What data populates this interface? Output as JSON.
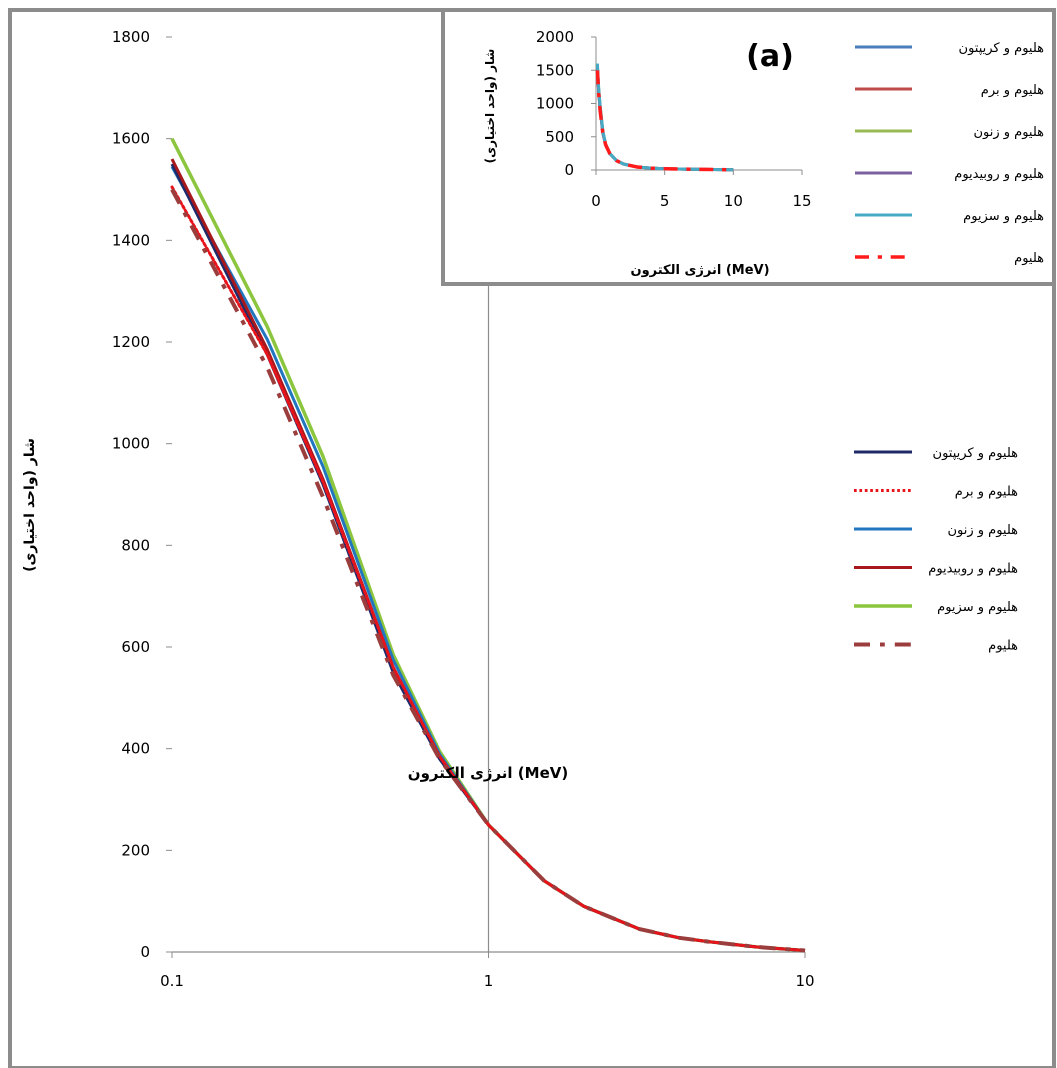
{
  "chart_data": [
    {
      "id": "main",
      "type": "line",
      "xscale": "log",
      "xlim": [
        0.1,
        10
      ],
      "ylim": [
        0,
        1800
      ],
      "yticks": [
        0,
        200,
        400,
        600,
        800,
        1000,
        1200,
        1400,
        1600,
        1800
      ],
      "xticks": [
        0.1,
        1,
        10
      ],
      "xticklabels": [
        "0.1",
        "1",
        "10"
      ],
      "xlabel": "انرژی الکترون (MeV)",
      "ylabel": "شار (واحد اختیاری)",
      "legend_position": "right",
      "x": [
        0.1,
        0.2,
        0.3,
        0.5,
        0.7,
        1,
        1.5,
        2,
        3,
        4,
        5,
        7,
        10
      ],
      "series": [
        {
          "name": "هلیوم و کریپتون",
          "color": "#1f2a6b",
          "dash": "solid",
          "width": 3,
          "values": [
            1550,
            1175,
            920,
            550,
            380,
            250,
            140,
            90,
            45,
            28,
            20,
            10,
            3
          ]
        },
        {
          "name": "هلیوم و برم",
          "color": "#e8141b",
          "dash": "dot",
          "width": 3,
          "values": [
            1505,
            1175,
            925,
            560,
            385,
            250,
            140,
            90,
            45,
            28,
            20,
            10,
            3
          ]
        },
        {
          "name": "هلیوم و زنون",
          "color": "#2176bf",
          "dash": "solid",
          "width": 3,
          "values": [
            1545,
            1205,
            955,
            575,
            390,
            250,
            140,
            90,
            45,
            28,
            20,
            10,
            3
          ]
        },
        {
          "name": "هلیوم و روبیدیوم",
          "color": "#a8171c",
          "dash": "solid",
          "width": 3,
          "values": [
            1560,
            1185,
            930,
            560,
            385,
            250,
            140,
            90,
            45,
            28,
            20,
            10,
            3
          ]
        },
        {
          "name": "هلیوم و سزیوم",
          "color": "#8cc63e",
          "dash": "solid",
          "width": 3.5,
          "values": [
            1600,
            1230,
            975,
            585,
            395,
            250,
            140,
            90,
            45,
            28,
            20,
            10,
            3
          ]
        },
        {
          "name": "هلیوم",
          "color": "#9c3d3d",
          "dash": "dashdot",
          "width": 4,
          "values": [
            1500,
            1150,
            895,
            545,
            380,
            250,
            140,
            90,
            45,
            28,
            20,
            10,
            3
          ]
        }
      ]
    },
    {
      "id": "inset",
      "type": "line",
      "annotation": "(a)",
      "xlim": [
        0,
        15
      ],
      "ylim": [
        0,
        2000
      ],
      "yticks": [
        0,
        500,
        1000,
        1500,
        2000
      ],
      "xticks": [
        0,
        5,
        10,
        15
      ],
      "xlabel": "انرژی الکترون (MeV)",
      "ylabel": "شار (واحد اختیاری)",
      "legend_position": "right",
      "x": [
        0.1,
        0.2,
        0.3,
        0.5,
        0.7,
        1,
        1.5,
        2,
        3,
        4,
        5,
        7,
        10
      ],
      "series": [
        {
          "name": "هلیوم و کریپتون",
          "color": "#4a7ebb",
          "dash": "solid",
          "width": 3,
          "values": [
            1550,
            1175,
            920,
            550,
            380,
            250,
            140,
            90,
            45,
            28,
            20,
            10,
            3
          ]
        },
        {
          "name": "هلیوم و برم",
          "color": "#be4b48",
          "dash": "solid",
          "width": 3,
          "values": [
            1505,
            1175,
            925,
            560,
            385,
            250,
            140,
            90,
            45,
            28,
            20,
            10,
            3
          ]
        },
        {
          "name": "هلیوم و زنون",
          "color": "#98b954",
          "dash": "solid",
          "width": 3,
          "values": [
            1545,
            1205,
            955,
            575,
            390,
            250,
            140,
            90,
            45,
            28,
            20,
            10,
            3
          ]
        },
        {
          "name": "هلیوم و روبیدیوم",
          "color": "#7d60a0",
          "dash": "solid",
          "width": 3,
          "values": [
            1560,
            1185,
            930,
            560,
            385,
            250,
            140,
            90,
            45,
            28,
            20,
            10,
            3
          ]
        },
        {
          "name": "هلیوم و سزیوم",
          "color": "#46aac4",
          "dash": "solid",
          "width": 3,
          "values": [
            1600,
            1230,
            975,
            585,
            395,
            250,
            140,
            90,
            45,
            28,
            20,
            10,
            3
          ]
        },
        {
          "name": "هلیوم",
          "color": "#ff1b1b",
          "dash": "dashdot",
          "width": 3.5,
          "values": [
            1500,
            1150,
            895,
            545,
            380,
            250,
            140,
            90,
            45,
            28,
            20,
            10,
            3
          ]
        }
      ]
    }
  ]
}
